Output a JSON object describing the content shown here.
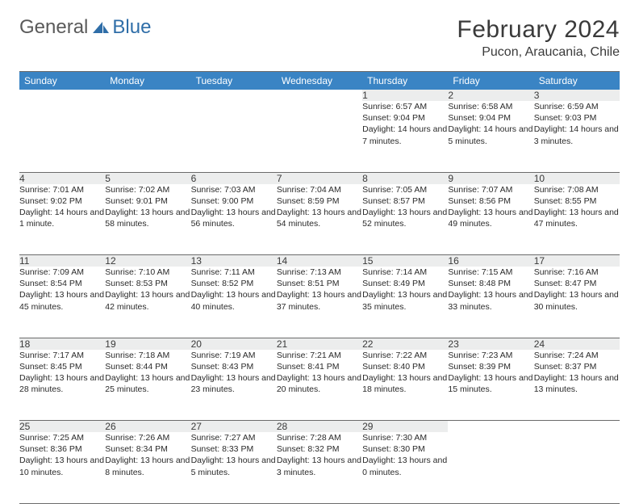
{
  "logo": {
    "general": "General",
    "blue": "Blue"
  },
  "title": "February 2024",
  "location": "Pucon, Araucania, Chile",
  "colors": {
    "header_bg": "#3a84c4",
    "header_text": "#ffffff",
    "daynum_bg": "#eceded",
    "rule": "#6b6b6b",
    "text": "#2a2a2a",
    "logo_gray": "#5a5a5a",
    "logo_blue": "#2f6ea8"
  },
  "weekdays": [
    "Sunday",
    "Monday",
    "Tuesday",
    "Wednesday",
    "Thursday",
    "Friday",
    "Saturday"
  ],
  "weeks": [
    [
      null,
      null,
      null,
      null,
      {
        "n": "1",
        "sunrise": "6:57 AM",
        "sunset": "9:04 PM",
        "daylight": "14 hours and 7 minutes."
      },
      {
        "n": "2",
        "sunrise": "6:58 AM",
        "sunset": "9:04 PM",
        "daylight": "14 hours and 5 minutes."
      },
      {
        "n": "3",
        "sunrise": "6:59 AM",
        "sunset": "9:03 PM",
        "daylight": "14 hours and 3 minutes."
      }
    ],
    [
      {
        "n": "4",
        "sunrise": "7:01 AM",
        "sunset": "9:02 PM",
        "daylight": "14 hours and 1 minute."
      },
      {
        "n": "5",
        "sunrise": "7:02 AM",
        "sunset": "9:01 PM",
        "daylight": "13 hours and 58 minutes."
      },
      {
        "n": "6",
        "sunrise": "7:03 AM",
        "sunset": "9:00 PM",
        "daylight": "13 hours and 56 minutes."
      },
      {
        "n": "7",
        "sunrise": "7:04 AM",
        "sunset": "8:59 PM",
        "daylight": "13 hours and 54 minutes."
      },
      {
        "n": "8",
        "sunrise": "7:05 AM",
        "sunset": "8:57 PM",
        "daylight": "13 hours and 52 minutes."
      },
      {
        "n": "9",
        "sunrise": "7:07 AM",
        "sunset": "8:56 PM",
        "daylight": "13 hours and 49 minutes."
      },
      {
        "n": "10",
        "sunrise": "7:08 AM",
        "sunset": "8:55 PM",
        "daylight": "13 hours and 47 minutes."
      }
    ],
    [
      {
        "n": "11",
        "sunrise": "7:09 AM",
        "sunset": "8:54 PM",
        "daylight": "13 hours and 45 minutes."
      },
      {
        "n": "12",
        "sunrise": "7:10 AM",
        "sunset": "8:53 PM",
        "daylight": "13 hours and 42 minutes."
      },
      {
        "n": "13",
        "sunrise": "7:11 AM",
        "sunset": "8:52 PM",
        "daylight": "13 hours and 40 minutes."
      },
      {
        "n": "14",
        "sunrise": "7:13 AM",
        "sunset": "8:51 PM",
        "daylight": "13 hours and 37 minutes."
      },
      {
        "n": "15",
        "sunrise": "7:14 AM",
        "sunset": "8:49 PM",
        "daylight": "13 hours and 35 minutes."
      },
      {
        "n": "16",
        "sunrise": "7:15 AM",
        "sunset": "8:48 PM",
        "daylight": "13 hours and 33 minutes."
      },
      {
        "n": "17",
        "sunrise": "7:16 AM",
        "sunset": "8:47 PM",
        "daylight": "13 hours and 30 minutes."
      }
    ],
    [
      {
        "n": "18",
        "sunrise": "7:17 AM",
        "sunset": "8:45 PM",
        "daylight": "13 hours and 28 minutes."
      },
      {
        "n": "19",
        "sunrise": "7:18 AM",
        "sunset": "8:44 PM",
        "daylight": "13 hours and 25 minutes."
      },
      {
        "n": "20",
        "sunrise": "7:19 AM",
        "sunset": "8:43 PM",
        "daylight": "13 hours and 23 minutes."
      },
      {
        "n": "21",
        "sunrise": "7:21 AM",
        "sunset": "8:41 PM",
        "daylight": "13 hours and 20 minutes."
      },
      {
        "n": "22",
        "sunrise": "7:22 AM",
        "sunset": "8:40 PM",
        "daylight": "13 hours and 18 minutes."
      },
      {
        "n": "23",
        "sunrise": "7:23 AM",
        "sunset": "8:39 PM",
        "daylight": "13 hours and 15 minutes."
      },
      {
        "n": "24",
        "sunrise": "7:24 AM",
        "sunset": "8:37 PM",
        "daylight": "13 hours and 13 minutes."
      }
    ],
    [
      {
        "n": "25",
        "sunrise": "7:25 AM",
        "sunset": "8:36 PM",
        "daylight": "13 hours and 10 minutes."
      },
      {
        "n": "26",
        "sunrise": "7:26 AM",
        "sunset": "8:34 PM",
        "daylight": "13 hours and 8 minutes."
      },
      {
        "n": "27",
        "sunrise": "7:27 AM",
        "sunset": "8:33 PM",
        "daylight": "13 hours and 5 minutes."
      },
      {
        "n": "28",
        "sunrise": "7:28 AM",
        "sunset": "8:32 PM",
        "daylight": "13 hours and 3 minutes."
      },
      {
        "n": "29",
        "sunrise": "7:30 AM",
        "sunset": "8:30 PM",
        "daylight": "13 hours and 0 minutes."
      },
      null,
      null
    ]
  ],
  "labels": {
    "sunrise": "Sunrise:",
    "sunset": "Sunset:",
    "daylight": "Daylight:"
  }
}
